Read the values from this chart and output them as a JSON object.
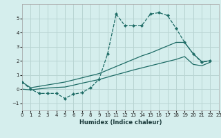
{
  "xlabel": "Humidex (Indice chaleur)",
  "background_color": "#d5eeed",
  "grid_color": "#b8d4d2",
  "line_color": "#1d6b65",
  "xlim": [
    0,
    23
  ],
  "ylim": [
    -1.5,
    6.0
  ],
  "yticks": [
    -1,
    0,
    1,
    2,
    3,
    4,
    5
  ],
  "xticks": [
    0,
    1,
    2,
    3,
    4,
    5,
    6,
    7,
    8,
    9,
    10,
    11,
    12,
    13,
    14,
    15,
    16,
    17,
    18,
    19,
    20,
    21,
    22,
    23
  ],
  "curve_x": [
    0,
    1,
    2,
    3,
    4,
    5,
    6,
    7,
    8,
    9,
    10,
    11,
    12,
    13,
    14,
    15,
    16,
    17,
    18,
    19,
    20,
    21,
    22
  ],
  "curve_y": [
    0.5,
    0.0,
    -0.3,
    -0.3,
    -0.3,
    -0.65,
    -0.35,
    -0.25,
    0.1,
    0.7,
    2.5,
    5.3,
    4.5,
    4.5,
    4.5,
    5.3,
    5.4,
    5.2,
    4.3,
    3.3,
    2.5,
    1.9,
    2.0
  ],
  "upper_x": [
    0,
    1,
    2,
    3,
    4,
    5,
    6,
    7,
    8,
    9,
    10,
    11,
    12,
    13,
    14,
    15,
    16,
    17,
    18,
    19,
    20,
    21,
    22
  ],
  "upper_y": [
    0.5,
    0.1,
    0.2,
    0.3,
    0.4,
    0.5,
    0.65,
    0.8,
    0.95,
    1.1,
    1.35,
    1.6,
    1.85,
    2.1,
    2.35,
    2.55,
    2.8,
    3.05,
    3.3,
    3.3,
    2.5,
    1.95,
    2.0
  ],
  "lower_x": [
    0,
    1,
    2,
    3,
    4,
    5,
    6,
    7,
    8,
    9,
    10,
    11,
    12,
    13,
    14,
    15,
    16,
    17,
    18,
    19,
    20,
    21,
    22
  ],
  "lower_y": [
    0.0,
    -0.05,
    0.02,
    0.08,
    0.12,
    0.15,
    0.28,
    0.42,
    0.55,
    0.68,
    0.85,
    1.02,
    1.18,
    1.35,
    1.5,
    1.65,
    1.8,
    1.95,
    2.1,
    2.3,
    1.75,
    1.65,
    1.9
  ]
}
